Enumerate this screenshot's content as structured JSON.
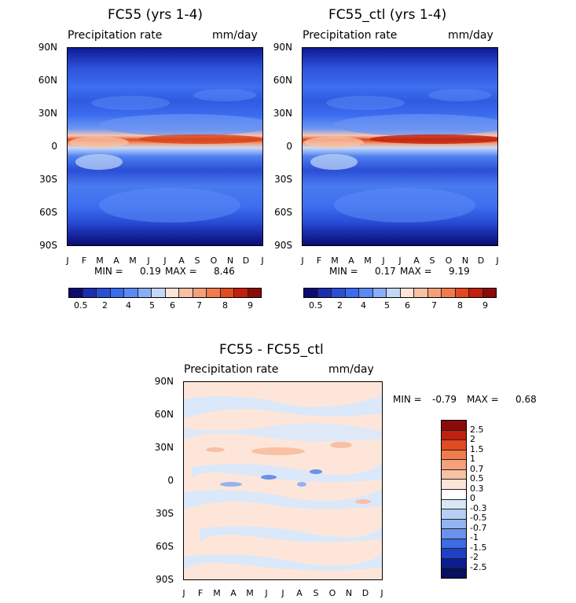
{
  "panels": [
    {
      "title": "FC55 (yrs 1-4)",
      "variable": "Precipitation rate",
      "units": "mm/day",
      "min_label": "MIN =",
      "min": "0.19",
      "max_label": "MAX =",
      "max": "8.46"
    },
    {
      "title": "FC55_ctl (yrs 1-4)",
      "variable": "Precipitation rate",
      "units": "mm/day",
      "min_label": "MIN =",
      "min": "0.17",
      "max_label": "MAX =",
      "max": "9.19"
    },
    {
      "title": "FC55 - FC55_ctl",
      "variable": "Precipitation rate",
      "units": "mm/day",
      "min_label": "MIN =",
      "min": "-0.79",
      "max_label": "MAX =",
      "max": "0.68"
    }
  ],
  "lat_ticks": [
    "90N",
    "60N",
    "30N",
    "0",
    "30S",
    "60S",
    "90S"
  ],
  "month_ticks": [
    "J",
    "F",
    "M",
    "A",
    "M",
    "J",
    "J",
    "A",
    "S",
    "O",
    "N",
    "D",
    "J"
  ],
  "colorbar_abs": {
    "labels": [
      "0.5",
      "2",
      "4",
      "5",
      "6",
      "7",
      "8",
      "9"
    ],
    "colors": [
      "#0c0c70",
      "#1a2fb0",
      "#2a4ed6",
      "#3b6cef",
      "#5b8af5",
      "#88aef7",
      "#c3d8f7",
      "#fce4d8",
      "#f8c0a4",
      "#f6a07a",
      "#f27a4c",
      "#e24a22",
      "#c0200c",
      "#8b0a0a"
    ]
  },
  "colorbar_diff": {
    "labels": [
      "2.5",
      "2",
      "1.5",
      "1",
      "0.7",
      "0.5",
      "0.3",
      "0",
      "-0.3",
      "-0.5",
      "-0.7",
      "-1",
      "-1.5",
      "-2",
      "-2.5"
    ],
    "colors": [
      "#8b0a0a",
      "#c0200c",
      "#e24a22",
      "#f27a4c",
      "#f6a07a",
      "#f8c0a4",
      "#fce4d8",
      "#ffffff",
      "#d8e6f8",
      "#b7cff5",
      "#93b3f1",
      "#6a91ec",
      "#3f6be3",
      "#1f40c4",
      "#0c1d92",
      "#06105e"
    ]
  },
  "chart_data": [
    {
      "type": "heatmap",
      "title": "FC55 (yrs 1-4)",
      "subtitle": "Precipitation rate",
      "units": "mm/day",
      "x": [
        "J",
        "F",
        "M",
        "A",
        "M",
        "J",
        "J",
        "A",
        "S",
        "O",
        "N",
        "D",
        "J"
      ],
      "y": [
        "90N",
        "60N",
        "30N",
        "0",
        "30S",
        "60S",
        "90S"
      ],
      "min": 0.19,
      "max": 8.46,
      "contour_levels": [
        0.5,
        2,
        4,
        5,
        6,
        7,
        8,
        9
      ]
    },
    {
      "type": "heatmap",
      "title": "FC55_ctl (yrs 1-4)",
      "subtitle": "Precipitation rate",
      "units": "mm/day",
      "x": [
        "J",
        "F",
        "M",
        "A",
        "M",
        "J",
        "J",
        "A",
        "S",
        "O",
        "N",
        "D",
        "J"
      ],
      "y": [
        "90N",
        "60N",
        "30N",
        "0",
        "30S",
        "60S",
        "90S"
      ],
      "min": 0.17,
      "max": 9.19,
      "contour_levels": [
        0.5,
        2,
        4,
        5,
        6,
        7,
        8,
        9
      ]
    },
    {
      "type": "heatmap",
      "title": "FC55 - FC55_ctl",
      "subtitle": "Precipitation rate",
      "units": "mm/day",
      "x": [
        "J",
        "F",
        "M",
        "A",
        "M",
        "J",
        "J",
        "A",
        "S",
        "O",
        "N",
        "D",
        "J"
      ],
      "y": [
        "90N",
        "60N",
        "30N",
        "0",
        "30S",
        "60S",
        "90S"
      ],
      "min": -0.79,
      "max": 0.68,
      "contour_levels": [
        -2.5,
        -2,
        -1.5,
        -1,
        -0.7,
        -0.5,
        -0.3,
        0,
        0.3,
        0.5,
        0.7,
        1,
        1.5,
        2,
        2.5
      ]
    }
  ]
}
